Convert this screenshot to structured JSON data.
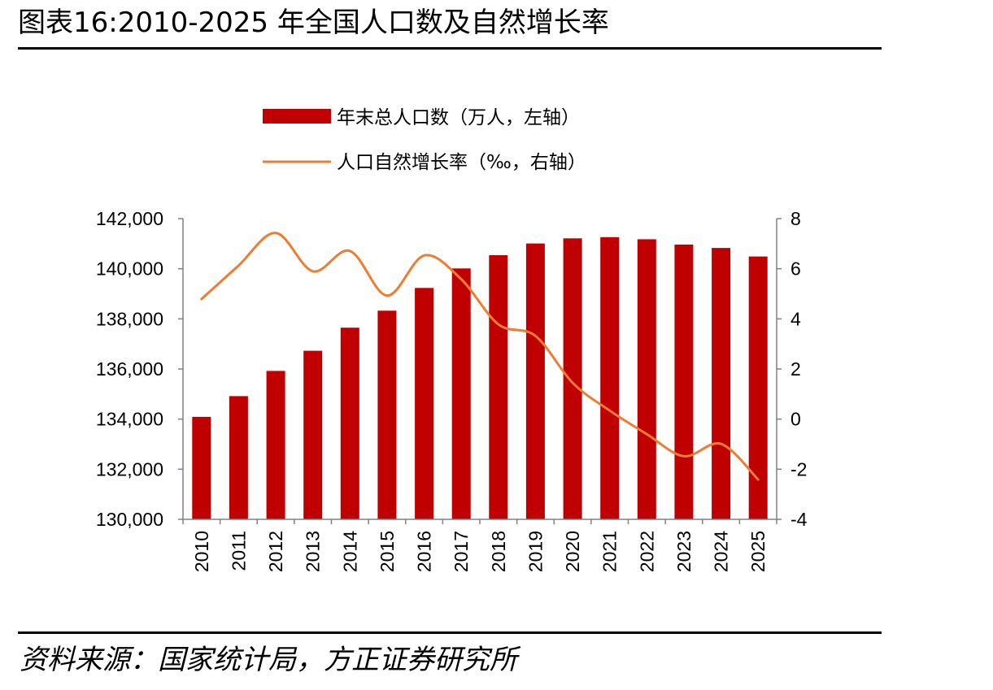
{
  "title": "图表16:2010-2025 年全国人口数及自然增长率",
  "source": "资料来源：国家统计局，方正证券研究所",
  "colors": {
    "bar": "#c00000",
    "line": "#ed7d31",
    "axis": "#808080"
  },
  "chart_data": {
    "type": "bar+line",
    "categories": [
      "2010",
      "2011",
      "2012",
      "2013",
      "2014",
      "2015",
      "2016",
      "2017",
      "2018",
      "2019",
      "2020",
      "2021",
      "2022",
      "2023",
      "2024",
      "2025"
    ],
    "series": [
      {
        "name": "年末总人口数（万人，左轴）",
        "type": "bar",
        "axis": "left",
        "values": [
          134091,
          134916,
          135922,
          136726,
          137646,
          138326,
          139232,
          140011,
          140541,
          141008,
          141212,
          141260,
          141175,
          140967,
          140828,
          140489
        ]
      },
      {
        "name": "人口自然增长率（‰，右轴）",
        "type": "line",
        "axis": "right",
        "values": [
          4.79,
          6.13,
          7.43,
          5.9,
          6.71,
          4.93,
          6.53,
          5.58,
          3.78,
          3.32,
          1.45,
          0.34,
          -0.6,
          -1.48,
          -0.99,
          -2.41
        ]
      }
    ],
    "y_left": {
      "range": [
        130000,
        142000
      ],
      "ticks": [
        "130,000",
        "132,000",
        "134,000",
        "136,000",
        "138,000",
        "140,000",
        "142,000"
      ]
    },
    "y_right": {
      "range": [
        -4,
        8
      ],
      "ticks": [
        "-4",
        "-2",
        "0",
        "2",
        "4",
        "6",
        "8"
      ]
    },
    "legend": "top-center",
    "grid": false
  }
}
